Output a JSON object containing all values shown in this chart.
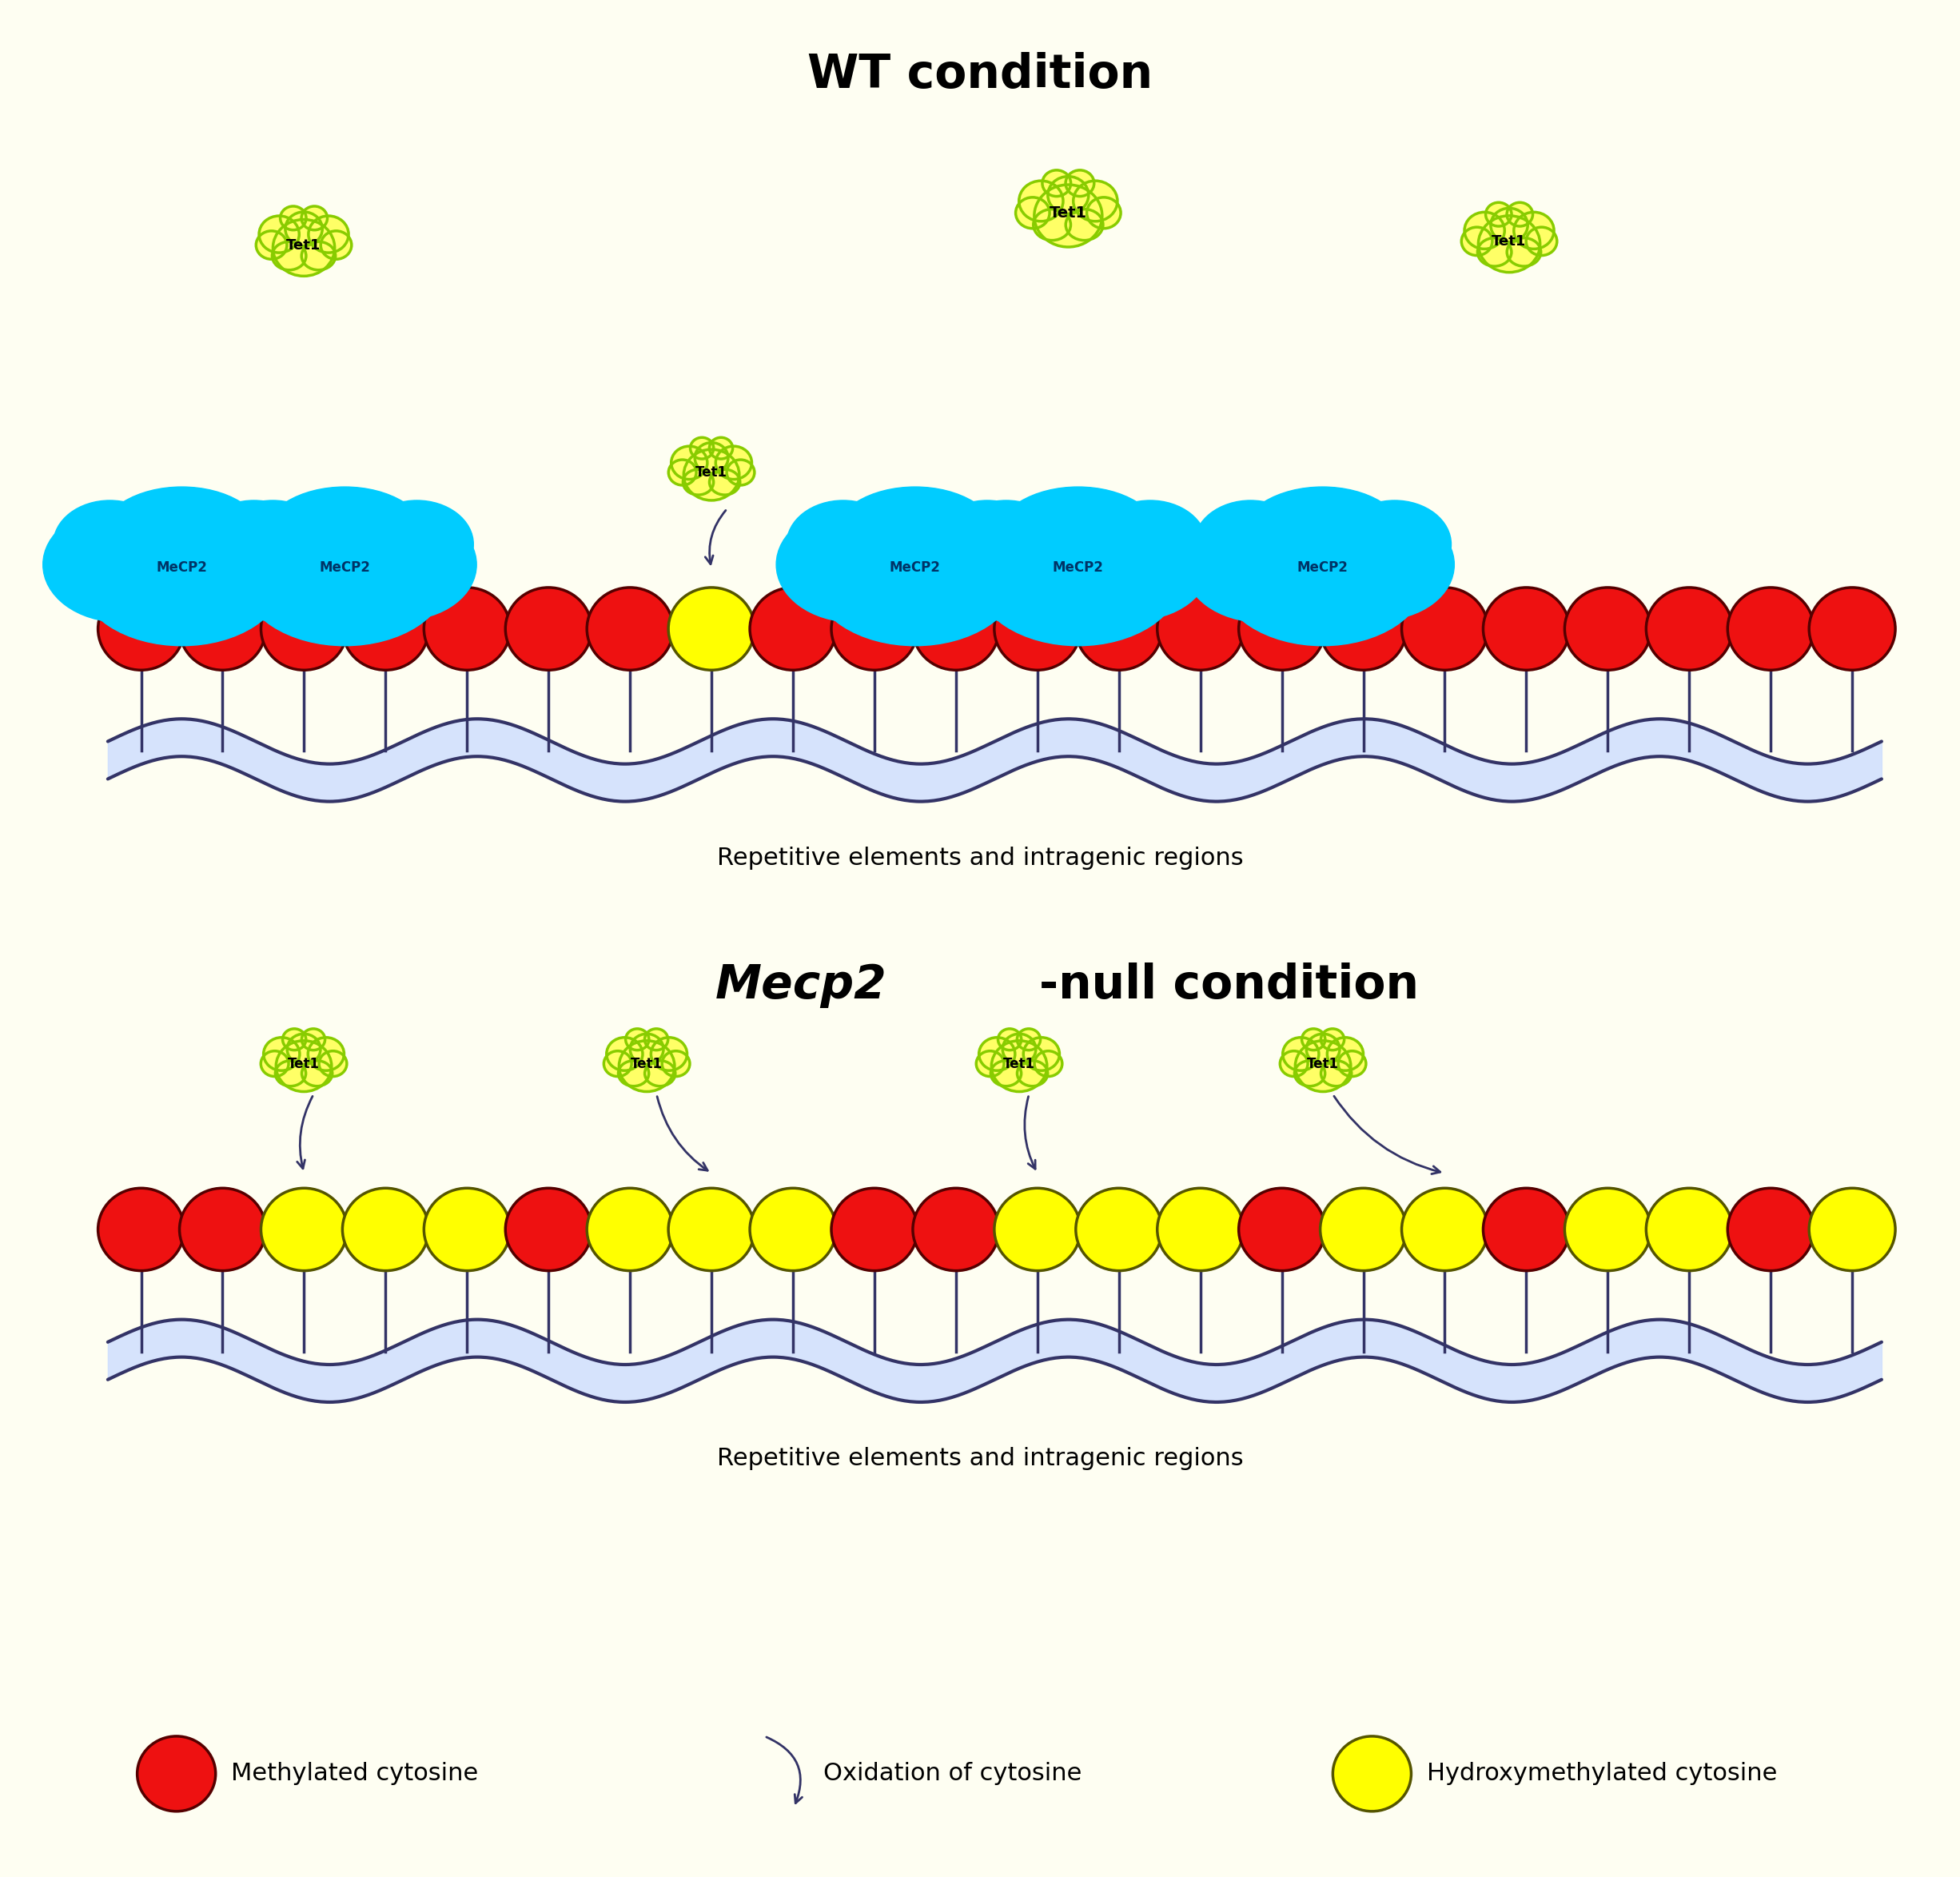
{
  "background_color": "#FEFEF2",
  "title_wt": "WT condition",
  "subtitle_wt": "Repetitive elements and intragenic regions",
  "subtitle_mecp2": "Repetitive elements and intragenic regions",
  "legend_methylated": "Methylated cytosine",
  "legend_oxidation": "Oxidation of cytosine",
  "legend_hydroxy": "Hydroxymethylated cytosine",
  "mecp2_color": "#00CCFF",
  "mecp2_edge": "#0088CC",
  "tet1_fill_color": "#FFFF66",
  "tet1_edge_color": "#88CC00",
  "methylated_color": "#EE1111",
  "methylated_edge": "#550000",
  "hydroxy_fill": "#FFFF00",
  "hydroxy_edge": "#555500",
  "stem_color": "#333366",
  "wave_color": "#333366",
  "wave_fill": "#CCDDFF"
}
